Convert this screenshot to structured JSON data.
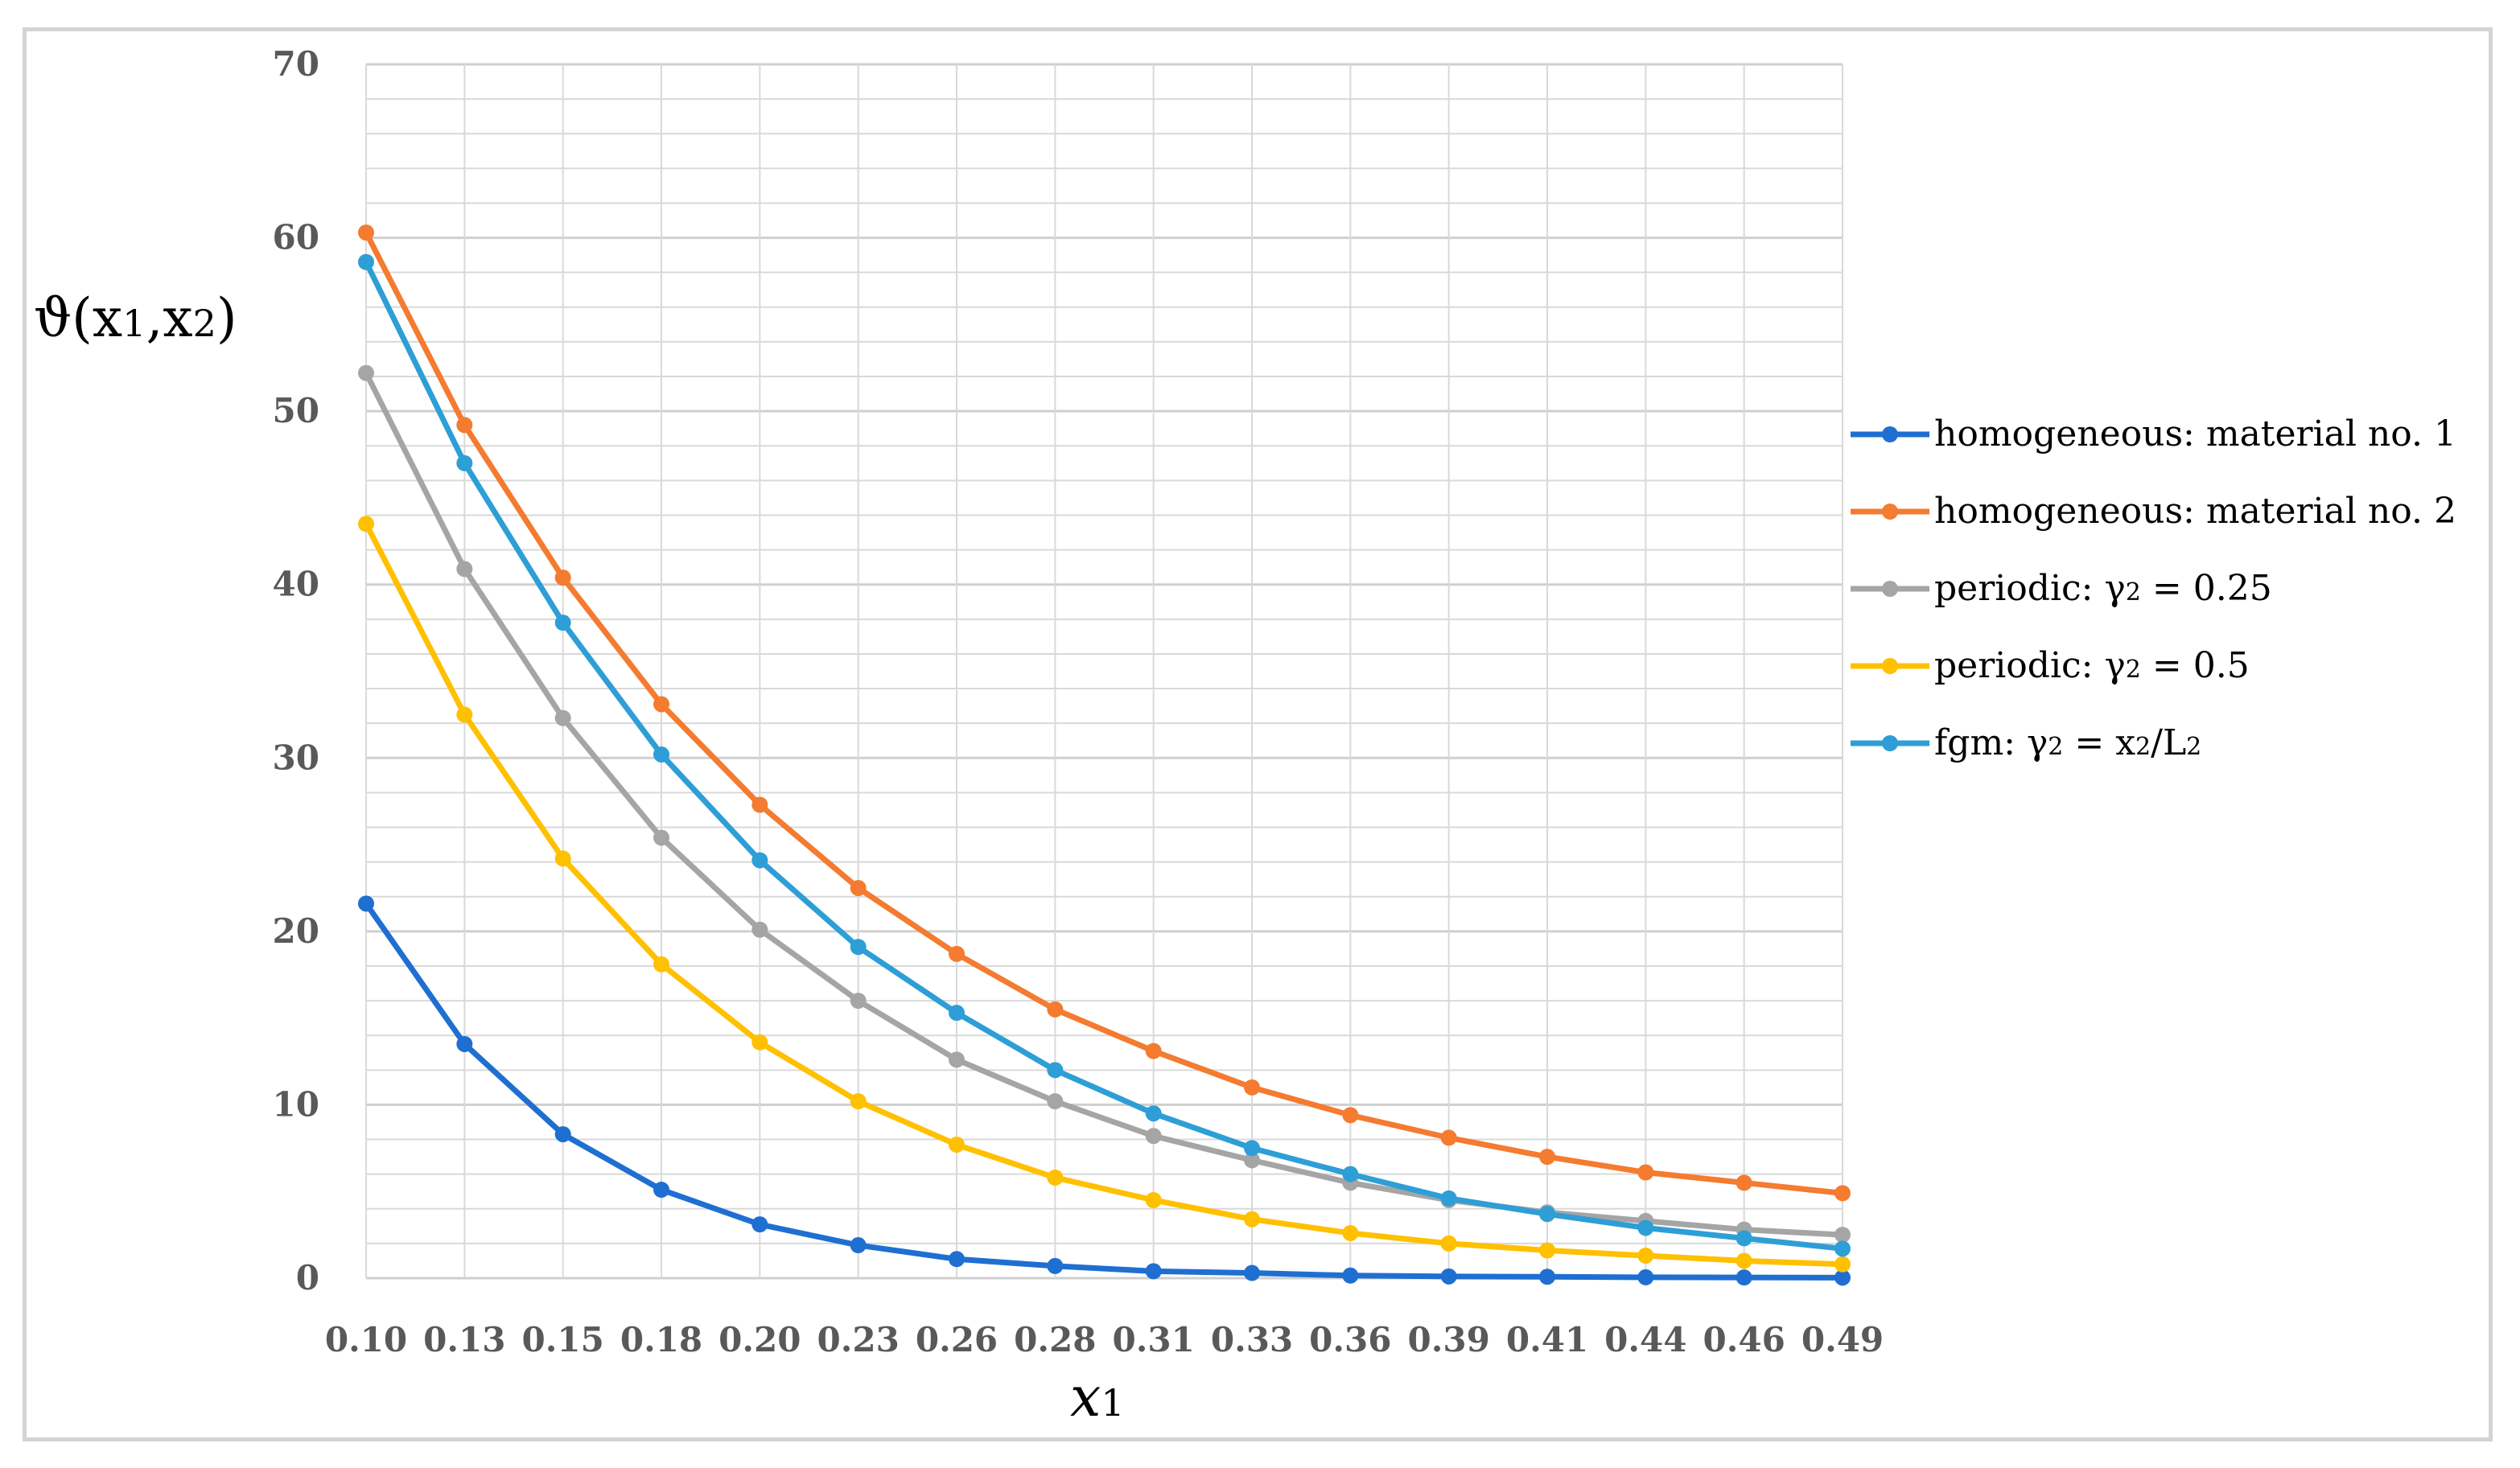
{
  "chart_data": {
    "type": "line",
    "title": "",
    "xlabel": "x1",
    "ylabel": "ϑ(x1,x2)",
    "ylim": [
      0,
      70
    ],
    "yticks": [
      0,
      10,
      20,
      30,
      40,
      50,
      60,
      70
    ],
    "grid": true,
    "legend_position": "right",
    "categories": [
      "0.10",
      "0.13",
      "0.15",
      "0.18",
      "0.20",
      "0.23",
      "0.26",
      "0.28",
      "0.31",
      "0.33",
      "0.36",
      "0.39",
      "0.41",
      "0.44",
      "0.46",
      "0.49"
    ],
    "series": [
      {
        "name": "homogeneous: material no. 1",
        "color": "#1f6fd1",
        "values": [
          21.6,
          13.5,
          8.3,
          5.1,
          3.1,
          1.9,
          1.1,
          0.7,
          0.4,
          0.3,
          0.15,
          0.1,
          0.08,
          0.05,
          0.04,
          0.03
        ]
      },
      {
        "name": "homogeneous: material no. 2",
        "color": "#f47b30",
        "values": [
          60.3,
          49.2,
          40.4,
          33.1,
          27.3,
          22.5,
          18.7,
          15.5,
          13.1,
          11.0,
          9.4,
          8.1,
          7.0,
          6.1,
          5.5,
          4.9
        ]
      },
      {
        "name": "periodic:   γ2 = 0.25",
        "color": "#a5a5a5",
        "values": [
          52.2,
          40.9,
          32.3,
          25.4,
          20.1,
          16.0,
          12.6,
          10.2,
          8.2,
          6.8,
          5.5,
          4.5,
          3.8,
          3.3,
          2.8,
          2.5
        ]
      },
      {
        "name": "periodic:   γ2 = 0.5",
        "color": "#ffc000",
        "values": [
          43.5,
          32.5,
          24.2,
          18.1,
          13.6,
          10.2,
          7.7,
          5.8,
          4.5,
          3.4,
          2.6,
          2.0,
          1.6,
          1.3,
          1.0,
          0.8
        ]
      },
      {
        "name": "fgm:  γ2 = x2/L2",
        "color": "#2e9ed6",
        "values": [
          58.6,
          47.0,
          37.8,
          30.2,
          24.1,
          19.1,
          15.3,
          12.0,
          9.5,
          7.5,
          6.0,
          4.6,
          3.7,
          2.9,
          2.3,
          1.7
        ]
      }
    ]
  }
}
